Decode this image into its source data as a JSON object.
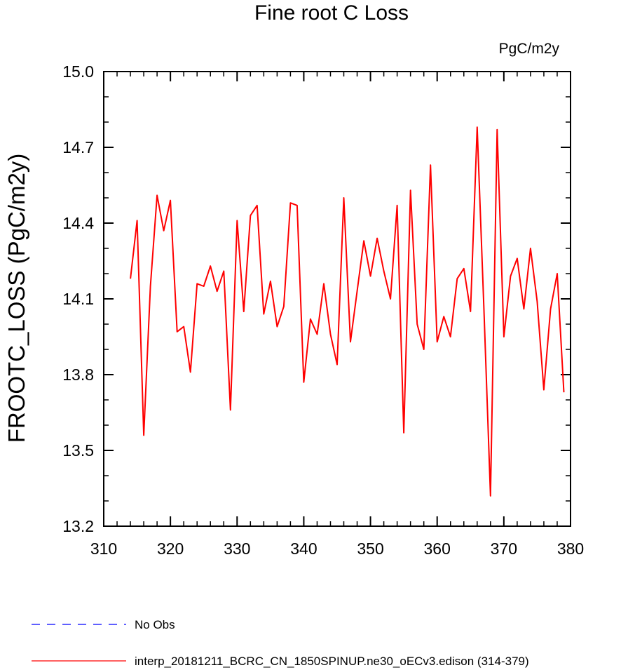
{
  "chart_data": {
    "type": "line",
    "title": "Fine root C Loss",
    "units": "PgC/m2y",
    "xlabel": "",
    "ylabel": "FROOTC_LOSS  (PgC/m2y)",
    "xlim": [
      310,
      380
    ],
    "ylim": [
      13.2,
      15.0
    ],
    "xticks": [
      310,
      320,
      330,
      340,
      350,
      360,
      370,
      380
    ],
    "yticks": [
      13.2,
      13.5,
      13.8,
      14.1,
      14.4,
      14.7,
      15.0
    ],
    "ytick_labels": [
      "13.2",
      "13.5",
      "13.8",
      "14.1",
      "14.4",
      "14.7",
      "15.0"
    ],
    "grid": false,
    "legend_position": "bottom-left",
    "series": [
      {
        "name": "No Obs",
        "color": "#0000ff",
        "style": "dashed",
        "x": [],
        "y": []
      },
      {
        "name": "interp_20181211_BCRC_CN_1850SPINUP.ne30_oECv3.edison (314-379)",
        "color": "#ff0000",
        "style": "solid",
        "x": [
          314,
          315,
          316,
          317,
          318,
          319,
          320,
          321,
          322,
          323,
          324,
          325,
          326,
          327,
          328,
          329,
          330,
          331,
          332,
          333,
          334,
          335,
          336,
          337,
          338,
          339,
          340,
          341,
          342,
          343,
          344,
          345,
          346,
          347,
          348,
          349,
          350,
          351,
          352,
          353,
          354,
          355,
          356,
          357,
          358,
          359,
          360,
          361,
          362,
          363,
          364,
          365,
          366,
          367,
          368,
          369,
          370,
          371,
          372,
          373,
          374,
          375,
          376,
          377,
          378,
          379
        ],
        "y": [
          14.18,
          14.41,
          13.56,
          14.15,
          14.51,
          14.37,
          14.49,
          13.97,
          13.99,
          13.81,
          14.16,
          14.15,
          14.23,
          14.13,
          14.21,
          13.66,
          14.41,
          14.05,
          14.43,
          14.47,
          14.04,
          14.17,
          13.99,
          14.07,
          14.48,
          14.47,
          13.77,
          14.02,
          13.96,
          14.16,
          13.96,
          13.84,
          14.5,
          13.93,
          14.13,
          14.33,
          14.19,
          14.34,
          14.21,
          14.1,
          14.47,
          13.57,
          14.53,
          14.0,
          13.9,
          14.63,
          13.93,
          14.03,
          13.95,
          14.18,
          14.22,
          14.05,
          14.78,
          14.07,
          13.32,
          14.77,
          13.95,
          14.19,
          14.26,
          14.06,
          14.3,
          14.09,
          13.74,
          14.06,
          14.2,
          13.73
        ]
      }
    ]
  }
}
